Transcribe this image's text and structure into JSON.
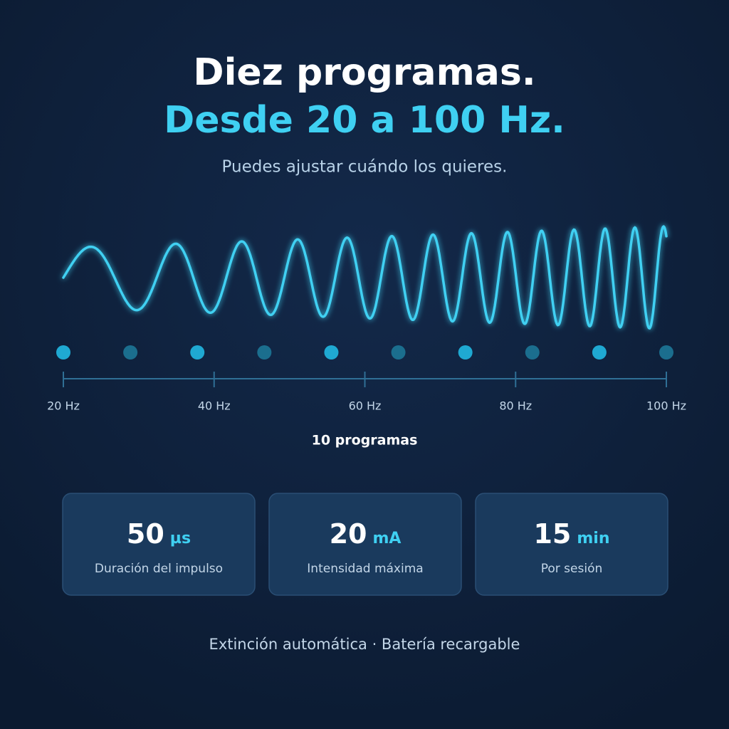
{
  "header": {
    "title": "Diez programas.",
    "title_accent": "Desde 20 a 100 Hz.",
    "subtitle": "Puedes ajustar cuándo los quieres."
  },
  "scale": {
    "labels": [
      "20 Hz",
      "40 Hz",
      "60 Hz",
      "80 Hz",
      "100 Hz"
    ],
    "caption": "10 programas"
  },
  "stats": [
    {
      "value": "50",
      "unit": "µs",
      "label": "Duración del impulso"
    },
    {
      "value": "20",
      "unit": "mA",
      "label": "Intensidad máxima"
    },
    {
      "value": "15",
      "unit": "min",
      "label": "Por sesión"
    }
  ],
  "footer": "Extinción automática · Batería recargable"
}
